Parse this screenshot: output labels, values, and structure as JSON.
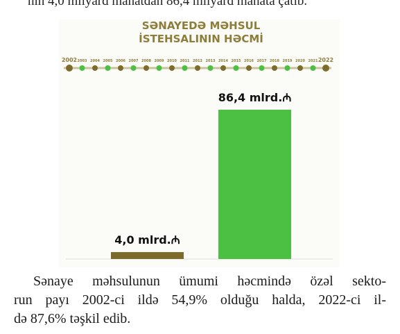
{
  "top_text": "nın 4,0 milyard manatdan 86,4 milyard manata çatıb.",
  "chart_data": {
    "type": "bar",
    "title": [
      "SƏNAYEDƏ MƏHSUL",
      "İSTEHSALININ HƏCMİ"
    ],
    "categories": [
      "2002",
      "2022"
    ],
    "timeline_labels": [
      "2003",
      "2004",
      "2005",
      "2006",
      "2007",
      "2008",
      "2009",
      "2010",
      "2011",
      "2012",
      "2013",
      "2014",
      "2015",
      "2016",
      "2017",
      "2018",
      "2019",
      "2020",
      "2021"
    ],
    "values": [
      4.0,
      86.4
    ],
    "value_labels": [
      "4,0 mlrd.₼",
      "86,4 mlrd.₼"
    ],
    "colors": [
      "#7d6b2c",
      "#4cc043"
    ]
  },
  "paragraph": [
    "Sənaye məhsulunun ümumi həcmində özəl sekto-",
    "run payı 2002-ci ildə 54,9% olduğu halda, 2022-ci il-",
    "də 87,6% təşkil edib."
  ]
}
